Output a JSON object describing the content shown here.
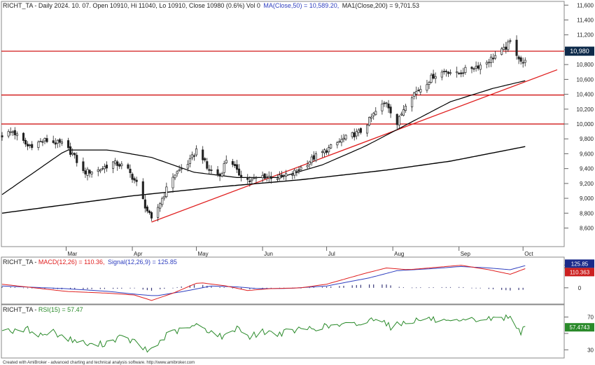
{
  "header": {
    "symbol": "RICHT_TA",
    "price_info": " - Daily 2024. 10. 07. Open 10910, Hi 11040, Lo 10910, Close 10980 (0.6%) Vol 0",
    "ma50_label": "MA(Close,50) = 10,589.20,",
    "ma200_label": "MA1(Close,200) = 9,701.53"
  },
  "macd_header": {
    "symbol": "RICHT_TA",
    "macd_label": "MACD(12,26) = 110.36,",
    "signal_label": "Signal(12,26,9) = 125.85"
  },
  "rsi_header": {
    "symbol": "RICHT_TA",
    "rsi_label": "RSI(15) = 57.47"
  },
  "footer": "Created with AmiBroker - advanced charting and technical analysis software. http://www.amibroker.com",
  "colors": {
    "price": "#222222",
    "ma50": "#000000",
    "ma200": "#000000",
    "trend": "#e02020",
    "hline": "#cc0000",
    "macd": "#e02020",
    "signal": "#3040c0",
    "rsi": "#2a8a2a",
    "badge_price": "#0d2a4a",
    "badge_signal": "#1a2a8a",
    "badge_macd": "#cc2020",
    "badge_rsi": "#2a8a2a"
  },
  "chart_data": [
    {
      "type": "candlestick",
      "name": "price",
      "x_months": [
        "Mar",
        "Apr",
        "May",
        "Jun",
        "Jul",
        "Aug",
        "Sep",
        "Oct"
      ],
      "month_start_day": [
        30,
        61,
        91,
        122,
        152,
        183,
        214,
        244
      ],
      "y_ticks": [
        8600,
        8800,
        9000,
        9200,
        9400,
        9600,
        9800,
        10000,
        10200,
        10400,
        10600,
        10800,
        11000,
        11200,
        11400,
        11600
      ],
      "ylim": [
        8350,
        11650
      ],
      "close_keypoints": [
        [
          0,
          9850
        ],
        [
          5,
          9900
        ],
        [
          12,
          9700
        ],
        [
          20,
          9780
        ],
        [
          28,
          9730
        ],
        [
          33,
          9600
        ],
        [
          38,
          9350
        ],
        [
          45,
          9380
        ],
        [
          52,
          9480
        ],
        [
          58,
          9420
        ],
        [
          63,
          9200
        ],
        [
          67,
          8900
        ],
        [
          70,
          8700
        ],
        [
          75,
          9000
        ],
        [
          80,
          9300
        ],
        [
          88,
          9500
        ],
        [
          92,
          9700
        ],
        [
          96,
          9400
        ],
        [
          102,
          9300
        ],
        [
          106,
          9600
        ],
        [
          110,
          9350
        ],
        [
          116,
          9230
        ],
        [
          122,
          9300
        ],
        [
          130,
          9280
        ],
        [
          136,
          9330
        ],
        [
          141,
          9430
        ],
        [
          146,
          9550
        ],
        [
          152,
          9650
        ],
        [
          160,
          9800
        ],
        [
          168,
          9900
        ],
        [
          176,
          10200
        ],
        [
          180,
          10300
        ],
        [
          185,
          10000
        ],
        [
          190,
          10350
        ],
        [
          196,
          10480
        ],
        [
          202,
          10650
        ],
        [
          208,
          10720
        ],
        [
          213,
          10670
        ],
        [
          219,
          10750
        ],
        [
          225,
          10800
        ],
        [
          230,
          10900
        ],
        [
          235,
          11000
        ],
        [
          238,
          11100
        ],
        [
          241,
          10950
        ],
        [
          244,
          10800
        ],
        [
          246,
          10980
        ]
      ],
      "ma50": [
        [
          0,
          9050
        ],
        [
          30,
          9650
        ],
        [
          50,
          9650
        ],
        [
          70,
          9550
        ],
        [
          90,
          9350
        ],
        [
          110,
          9280
        ],
        [
          130,
          9280
        ],
        [
          150,
          9450
        ],
        [
          170,
          9700
        ],
        [
          190,
          10000
        ],
        [
          210,
          10300
        ],
        [
          230,
          10480
        ],
        [
          246,
          10589.2
        ]
      ],
      "ma200": [
        [
          0,
          8800
        ],
        [
          60,
          9030
        ],
        [
          100,
          9150
        ],
        [
          140,
          9250
        ],
        [
          180,
          9380
        ],
        [
          210,
          9500
        ],
        [
          246,
          9701.53
        ]
      ],
      "trendline": [
        [
          70,
          8680
        ],
        [
          260,
          10730
        ]
      ],
      "horizontal_lines": [
        10980,
        10390,
        10000
      ],
      "last_close_label": "10,980"
    },
    {
      "type": "line",
      "name": "macd",
      "y_ticks": [
        125.85,
        110.36,
        0
      ],
      "tick_labels": [
        "125.85",
        "110.363",
        "0"
      ],
      "macd_keypoints": [
        [
          0,
          20
        ],
        [
          30,
          -20
        ],
        [
          50,
          -30
        ],
        [
          62,
          -40
        ],
        [
          70,
          -70
        ],
        [
          80,
          -30
        ],
        [
          92,
          30
        ],
        [
          105,
          10
        ],
        [
          115,
          -15
        ],
        [
          125,
          -5
        ],
        [
          140,
          0
        ],
        [
          152,
          20
        ],
        [
          170,
          80
        ],
        [
          180,
          110
        ],
        [
          190,
          100
        ],
        [
          200,
          110
        ],
        [
          215,
          125
        ],
        [
          228,
          100
        ],
        [
          238,
          75
        ],
        [
          246,
          110.36
        ]
      ],
      "signal_keypoints": [
        [
          0,
          10
        ],
        [
          30,
          -5
        ],
        [
          50,
          -20
        ],
        [
          62,
          -35
        ],
        [
          72,
          -45
        ],
        [
          85,
          -20
        ],
        [
          98,
          10
        ],
        [
          110,
          5
        ],
        [
          120,
          -5
        ],
        [
          135,
          -3
        ],
        [
          152,
          10
        ],
        [
          172,
          55
        ],
        [
          185,
          95
        ],
        [
          200,
          105
        ],
        [
          215,
          118
        ],
        [
          228,
          110
        ],
        [
          238,
          100
        ],
        [
          246,
          125.85
        ]
      ],
      "ylim": [
        -90,
        170
      ]
    },
    {
      "type": "line",
      "name": "rsi",
      "y_ticks": [
        70,
        50,
        30
      ],
      "tick_labels": [
        "70",
        "",
        "30"
      ],
      "rsi_keypoints": [
        [
          0,
          57
        ],
        [
          6,
          52
        ],
        [
          12,
          55
        ],
        [
          18,
          48
        ],
        [
          24,
          52
        ],
        [
          30,
          44
        ],
        [
          36,
          40
        ],
        [
          42,
          35
        ],
        [
          48,
          38
        ],
        [
          55,
          45
        ],
        [
          62,
          40
        ],
        [
          68,
          28
        ],
        [
          72,
          35
        ],
        [
          78,
          50
        ],
        [
          85,
          55
        ],
        [
          92,
          60
        ],
        [
          98,
          52
        ],
        [
          104,
          45
        ],
        [
          110,
          58
        ],
        [
          116,
          46
        ],
        [
          122,
          52
        ],
        [
          130,
          50
        ],
        [
          140,
          55
        ],
        [
          150,
          58
        ],
        [
          160,
          60
        ],
        [
          170,
          62
        ],
        [
          176,
          72
        ],
        [
          182,
          58
        ],
        [
          190,
          65
        ],
        [
          200,
          68
        ],
        [
          210,
          62
        ],
        [
          220,
          66
        ],
        [
          230,
          68
        ],
        [
          238,
          70
        ],
        [
          241,
          60
        ],
        [
          243,
          52
        ],
        [
          246,
          57.47
        ]
      ],
      "ylim": [
        20,
        85
      ],
      "last_label": "57.4743"
    }
  ]
}
